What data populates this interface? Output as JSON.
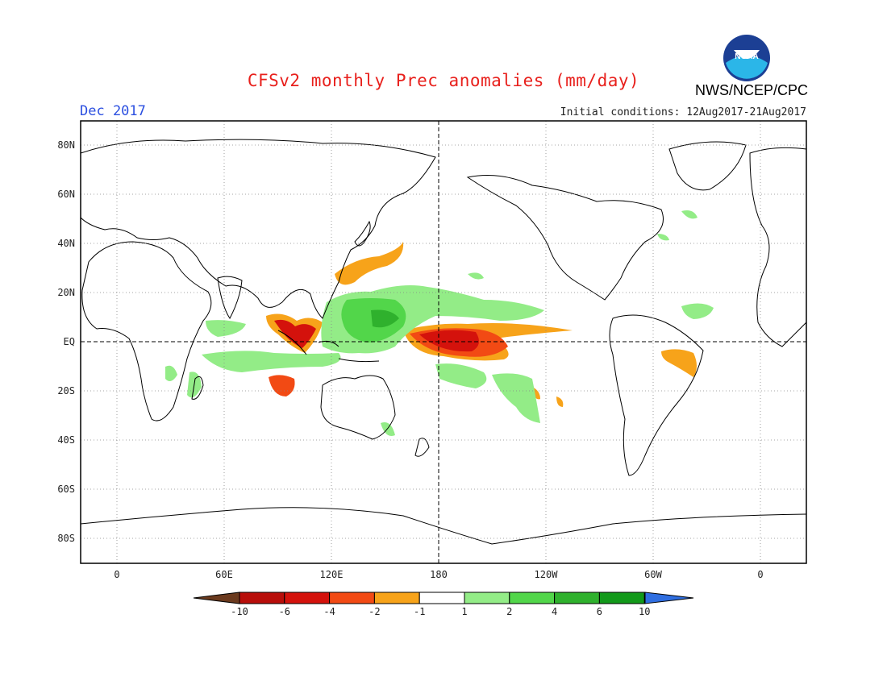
{
  "header": {
    "title": "CFSv2 monthly Prec anomalies (mm/day)",
    "month": "Dec 2017",
    "initial_conditions": "Initial conditions: 12Aug2017-21Aug2017",
    "agency": "NWS/NCEP/CPC",
    "logo_text": "NOAA"
  },
  "map": {
    "lat_labels": [
      "80N",
      "60N",
      "40N",
      "20N",
      "EQ",
      "20S",
      "40S",
      "60S",
      "80S"
    ],
    "lon_labels": [
      "0",
      "60E",
      "120E",
      "180",
      "120W",
      "60W",
      "0"
    ],
    "lat_range": [
      -90,
      90
    ],
    "lon_range": [
      -20,
      385
    ]
  },
  "colorbar": {
    "labels": [
      "-10",
      "-6",
      "-4",
      "-2",
      "-1",
      "1",
      "2",
      "4",
      "6",
      "10"
    ],
    "colors": [
      "#6b3a1e",
      "#b80e0a",
      "#d4120c",
      "#f24a14",
      "#f7a31a",
      "#ffffff",
      "#93ec87",
      "#52d64a",
      "#2fb12d",
      "#12991a",
      "#2f6ee0"
    ]
  },
  "colors": {
    "title": "#e8201c",
    "month": "#2b4fe0",
    "dry_strong": "#c8120c",
    "dry_mod": "#f24a14",
    "dry_weak": "#f7a31a",
    "wet_weak": "#93ec87",
    "wet_mod": "#52d64a",
    "wet_strong": "#2fb12d"
  }
}
